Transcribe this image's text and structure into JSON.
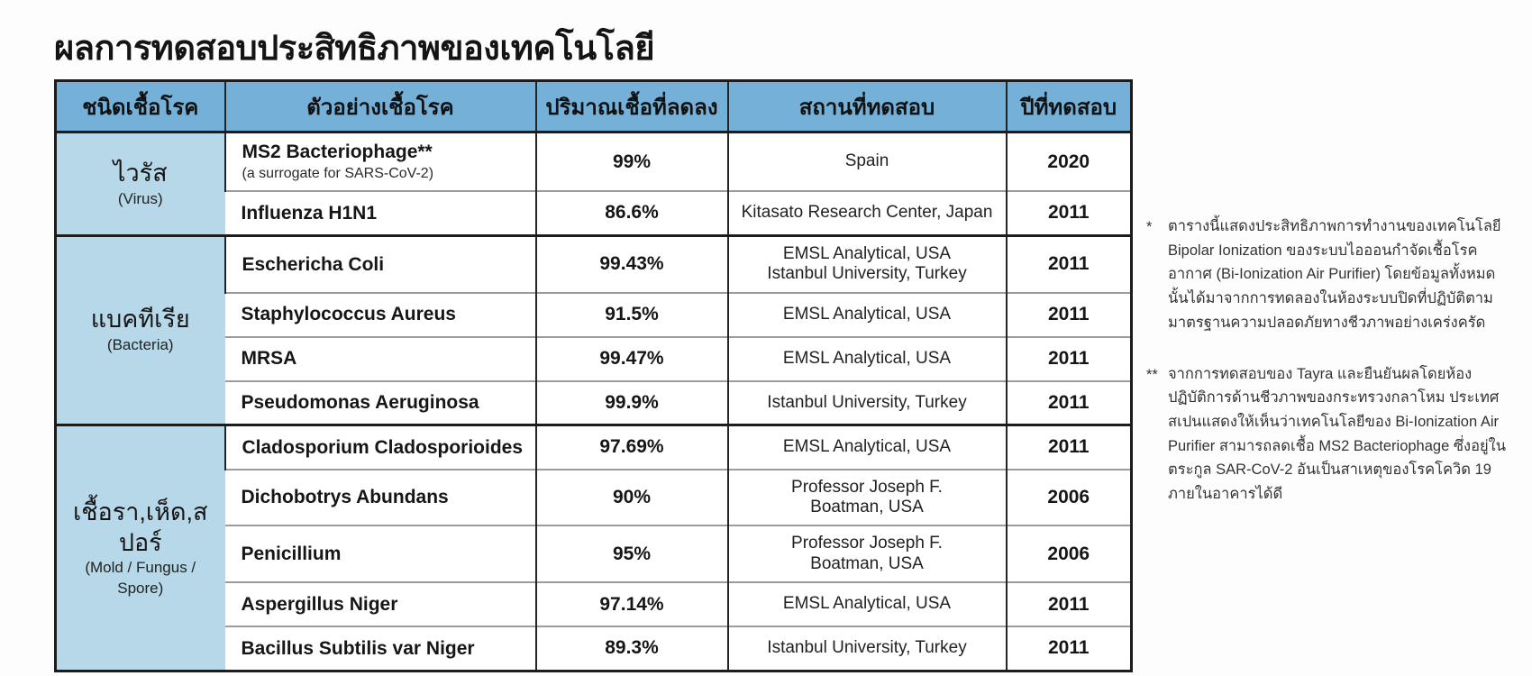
{
  "title": "ผลการทดสอบประสิทธิภาพของเทคโนโลยี",
  "table": {
    "headers": [
      "ชนิดเชื้อโรค",
      "ตัวอย่างเชื้อโรค",
      "ปริมาณเชื้อที่ลดลง",
      "สถานที่ทดสอบ",
      "ปีที่ทดสอบ"
    ],
    "groups": [
      {
        "type": "ไวรัส",
        "type_en": "(Virus)",
        "rows": [
          {
            "sample": "MS2 Bacteriophage**",
            "sample_sub": "(a surrogate for SARS-CoV-2)",
            "reduction": "99%",
            "location": "Spain",
            "year": "2020"
          },
          {
            "sample": "Influenza H1N1",
            "reduction": "86.6%",
            "location": "Kitasato Research Center, Japan",
            "year": "2011"
          }
        ]
      },
      {
        "type": "แบคทีเรีย",
        "type_en": "(Bacteria)",
        "rows": [
          {
            "sample": "Eschericha Coli",
            "reduction": "99.43%",
            "location": "EMSL Analytical, USA\nIstanbul University, Turkey",
            "year": "2011"
          },
          {
            "sample": "Staphylococcus Aureus",
            "reduction": "91.5%",
            "location": "EMSL Analytical, USA",
            "year": "2011"
          },
          {
            "sample": "MRSA",
            "reduction": "99.47%",
            "location": "EMSL Analytical, USA",
            "year": "2011"
          },
          {
            "sample": "Pseudomonas Aeruginosa",
            "reduction": "99.9%",
            "location": "Istanbul University, Turkey",
            "year": "2011"
          }
        ]
      },
      {
        "type": "เชื้อรา,เห็ด,สปอร์",
        "type_en": "(Mold / Fungus / Spore)",
        "rows": [
          {
            "sample": "Cladosporium Cladosporioides",
            "reduction": "97.69%",
            "location": "EMSL Analytical, USA",
            "year": "2011"
          },
          {
            "sample": "Dichobotrys Abundans",
            "reduction": "90%",
            "location": "Professor Joseph F.\nBoatman, USA",
            "year": "2006"
          },
          {
            "sample": "Penicillium",
            "reduction": "95%",
            "location": "Professor Joseph F.\nBoatman, USA",
            "year": "2006"
          },
          {
            "sample": "Aspergillus Niger",
            "reduction": "97.14%",
            "location": "EMSL Analytical, USA",
            "year": "2011"
          },
          {
            "sample": "Bacillus Subtilis var Niger",
            "reduction": "89.3%",
            "location": "Istanbul University, Turkey",
            "year": "2011"
          }
        ]
      }
    ]
  },
  "footnotes": [
    {
      "marker": "*",
      "text": "ตารางนี้แสดงประสิทธิภาพการทำงานของเทคโนโลยี Bipolar Ionization ของระบบไอออนกำจัดเชื้อโรคอากาศ (Bi-Ionization Air Purifier) โดยข้อมูลทั้งหมดนั้นได้มาจากการทดลองในห้องระบบปิดที่ปฏิบัติตามมาตรฐานความปลอดภัยทางชีวภาพอย่างเคร่งครัด"
    },
    {
      "marker": "**",
      "text": "จากการทดสอบของ Tayra และยืนยันผลโดยห้องปฏิบัติการด้านชีวภาพของกระทรวงกลาโหม ประเทศสเปนแสดงให้เห็นว่าเทคโนโลยีของ Bi-Ionization Air Purifier สามารถลดเชื้อ MS2 Bacteriophage ซึ่งอยู่ในตระกูล SAR-CoV-2 อันเป็นสาเหตุของโรคโควิด 19 ภายในอาคารได้ดี"
    }
  ],
  "colors": {
    "header_bg": "#74b0d7",
    "group_bg": "#b6d8e9",
    "border_dark": "#1c1c1c",
    "border_light": "#9b9b9b",
    "text": "#1b1b1b"
  }
}
